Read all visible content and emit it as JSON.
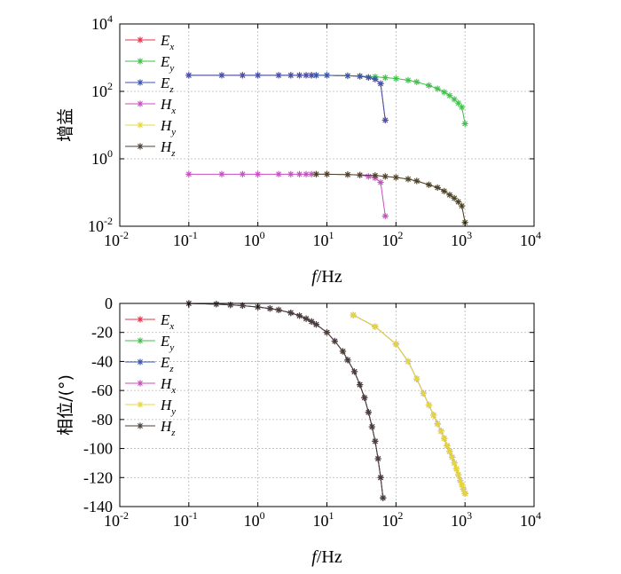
{
  "chart_data": [
    {
      "type": "line",
      "ylabel": "增益",
      "xlabel_italic": "f",
      "xlabel_rest": "/Hz",
      "x_scale": "log",
      "y_scale": "log",
      "xlim": [
        0.01,
        10000
      ],
      "ylim": [
        0.01,
        10000
      ],
      "grid": true,
      "legend_position": "top-left",
      "x_ticks": [
        {
          "base": "10",
          "exp": "-2"
        },
        {
          "base": "10",
          "exp": "-1"
        },
        {
          "base": "10",
          "exp": "0"
        },
        {
          "base": "10",
          "exp": "1"
        },
        {
          "base": "10",
          "exp": "2"
        },
        {
          "base": "10",
          "exp": "3"
        },
        {
          "base": "10",
          "exp": "4"
        }
      ],
      "y_ticks": [
        {
          "base": "10",
          "exp": "-2"
        },
        {
          "base": "10",
          "exp": "0"
        },
        {
          "base": "10",
          "exp": "2"
        },
        {
          "base": "10",
          "exp": "4"
        }
      ],
      "series": [
        {
          "name": "E",
          "sub": "x",
          "color": "#e8334a",
          "x": [
            0.1,
            0.3,
            0.6,
            1,
            2,
            3,
            4,
            5,
            6,
            7,
            10,
            20,
            30,
            40,
            50,
            60,
            70
          ],
          "y": [
            300,
            300,
            300,
            300,
            300,
            300,
            300,
            300,
            300,
            300,
            300,
            290,
            280,
            260,
            230,
            170,
            14
          ]
        },
        {
          "name": "E",
          "sub": "y",
          "color": "#3fbf4a",
          "x": [
            7,
            10,
            20,
            30,
            50,
            70,
            100,
            150,
            200,
            300,
            400,
            500,
            600,
            700,
            800,
            900,
            1000
          ],
          "y": [
            300,
            300,
            290,
            285,
            270,
            255,
            240,
            215,
            190,
            150,
            120,
            95,
            75,
            58,
            45,
            34,
            11
          ]
        },
        {
          "name": "E",
          "sub": "z",
          "color": "#3a55b0",
          "x": [
            0.1,
            0.3,
            0.6,
            1,
            2,
            3,
            4,
            5,
            6,
            7,
            10,
            20,
            30,
            40,
            50,
            60,
            70
          ],
          "y": [
            300,
            300,
            300,
            300,
            300,
            300,
            300,
            300,
            300,
            300,
            300,
            290,
            280,
            260,
            230,
            170,
            14
          ]
        },
        {
          "name": "H",
          "sub": "x",
          "color": "#c64fbf",
          "x": [
            0.1,
            0.3,
            0.6,
            1,
            2,
            3,
            4,
            5,
            6,
            7,
            10,
            20,
            30,
            40,
            50,
            60,
            70
          ],
          "y": [
            0.35,
            0.35,
            0.35,
            0.35,
            0.35,
            0.35,
            0.35,
            0.35,
            0.35,
            0.35,
            0.35,
            0.34,
            0.33,
            0.3,
            0.27,
            0.2,
            0.02
          ]
        },
        {
          "name": "H",
          "sub": "y",
          "color": "#e6d83a",
          "x": [
            7,
            10,
            20,
            30,
            50,
            70,
            100,
            150,
            200,
            300,
            400,
            500,
            600,
            700,
            800,
            900,
            1000
          ],
          "y": [
            0.35,
            0.35,
            0.34,
            0.33,
            0.32,
            0.3,
            0.28,
            0.25,
            0.22,
            0.17,
            0.14,
            0.11,
            0.085,
            0.068,
            0.053,
            0.04,
            0.013
          ]
        },
        {
          "name": "H",
          "sub": "z",
          "color": "#4a3f35",
          "x": [
            7,
            10,
            20,
            30,
            50,
            70,
            100,
            150,
            200,
            300,
            400,
            500,
            600,
            700,
            800,
            900,
            1000
          ],
          "y": [
            0.35,
            0.35,
            0.34,
            0.33,
            0.32,
            0.3,
            0.28,
            0.25,
            0.22,
            0.17,
            0.14,
            0.11,
            0.085,
            0.068,
            0.053,
            0.04,
            0.013
          ]
        }
      ]
    },
    {
      "type": "line",
      "ylabel": "相位/(°)",
      "xlabel_italic": "f",
      "xlabel_rest": "/Hz",
      "x_scale": "log",
      "y_scale": "linear",
      "xlim": [
        0.01,
        10000
      ],
      "ylim": [
        -140,
        0
      ],
      "grid": true,
      "legend_position": "top-left",
      "x_ticks": [
        {
          "base": "10",
          "exp": "-2"
        },
        {
          "base": "10",
          "exp": "-1"
        },
        {
          "base": "10",
          "exp": "0"
        },
        {
          "base": "10",
          "exp": "1"
        },
        {
          "base": "10",
          "exp": "2"
        },
        {
          "base": "10",
          "exp": "3"
        },
        {
          "base": "10",
          "exp": "4"
        }
      ],
      "y_ticks": [
        "0",
        "-20",
        "-40",
        "-60",
        "-80",
        "-100",
        "-120",
        "-140"
      ],
      "series": [
        {
          "name": "E",
          "sub": "x",
          "color": "#e8334a",
          "x": [
            0.1,
            0.25,
            0.4,
            0.6,
            1,
            1.5,
            2,
            3,
            4,
            5,
            6,
            7,
            10,
            13,
            17,
            20,
            25,
            30,
            35,
            40,
            45,
            50,
            55,
            60,
            65
          ],
          "y": [
            0,
            -0.5,
            -1,
            -1.5,
            -2.5,
            -3.5,
            -4.5,
            -6.5,
            -8.5,
            -10.5,
            -12.5,
            -14.5,
            -20,
            -26,
            -33,
            -39,
            -47,
            -56,
            -65,
            -75,
            -85,
            -95,
            -107,
            -120,
            -134
          ]
        },
        {
          "name": "E",
          "sub": "y",
          "color": "#3fbf4a",
          "x": [
            24,
            50,
            100,
            150,
            200,
            250,
            300,
            350,
            400,
            450,
            500,
            550,
            600,
            650,
            700,
            750,
            800,
            850,
            900,
            950,
            1000
          ],
          "y": [
            -8,
            -16,
            -28,
            -40,
            -52,
            -62,
            -70,
            -77,
            -83,
            -88,
            -93,
            -98,
            -102,
            -106,
            -110,
            -114,
            -118,
            -122,
            -125,
            -128,
            -131
          ]
        },
        {
          "name": "E",
          "sub": "z",
          "color": "#3a55b0",
          "x": [
            0.1,
            0.25,
            0.4,
            0.6,
            1,
            1.5,
            2,
            3,
            4,
            5,
            6,
            7,
            10,
            13,
            17,
            20,
            25,
            30,
            35,
            40,
            45,
            50,
            55,
            60,
            65
          ],
          "y": [
            0,
            -0.5,
            -1,
            -1.5,
            -2.5,
            -3.5,
            -4.5,
            -6.5,
            -8.5,
            -10.5,
            -12.5,
            -14.5,
            -20,
            -26,
            -33,
            -39,
            -47,
            -56,
            -65,
            -75,
            -85,
            -95,
            -107,
            -120,
            -134
          ]
        },
        {
          "name": "H",
          "sub": "x",
          "color": "#c64fbf",
          "x": [
            24,
            50,
            100,
            150,
            200,
            250,
            300,
            350,
            400,
            450,
            500,
            550,
            600,
            650,
            700,
            750,
            800,
            850,
            900,
            950,
            1000
          ],
          "y": [
            -8,
            -16,
            -28,
            -40,
            -52,
            -62,
            -70,
            -77,
            -83,
            -88,
            -93,
            -98,
            -102,
            -106,
            -110,
            -114,
            -118,
            -122,
            -125,
            -128,
            -131
          ]
        },
        {
          "name": "H",
          "sub": "y",
          "color": "#e6d83a",
          "x": [
            24,
            50,
            100,
            150,
            200,
            250,
            300,
            350,
            400,
            450,
            500,
            550,
            600,
            650,
            700,
            750,
            800,
            850,
            900,
            950,
            1000
          ],
          "y": [
            -8,
            -16,
            -28,
            -40,
            -52,
            -62,
            -70,
            -77,
            -83,
            -88,
            -93,
            -98,
            -102,
            -106,
            -110,
            -114,
            -118,
            -122,
            -125,
            -128,
            -131
          ]
        },
        {
          "name": "H",
          "sub": "z",
          "color": "#4a3f35",
          "x": [
            0.1,
            0.25,
            0.4,
            0.6,
            1,
            1.5,
            2,
            3,
            4,
            5,
            6,
            7,
            10,
            13,
            17,
            20,
            25,
            30,
            35,
            40,
            45,
            50,
            55,
            60,
            65
          ],
          "y": [
            0,
            -0.5,
            -1,
            -1.5,
            -2.5,
            -3.5,
            -4.5,
            -6.5,
            -8.5,
            -10.5,
            -12.5,
            -14.5,
            -20,
            -26,
            -33,
            -39,
            -47,
            -56,
            -65,
            -75,
            -85,
            -95,
            -107,
            -120,
            -134
          ]
        }
      ]
    }
  ]
}
